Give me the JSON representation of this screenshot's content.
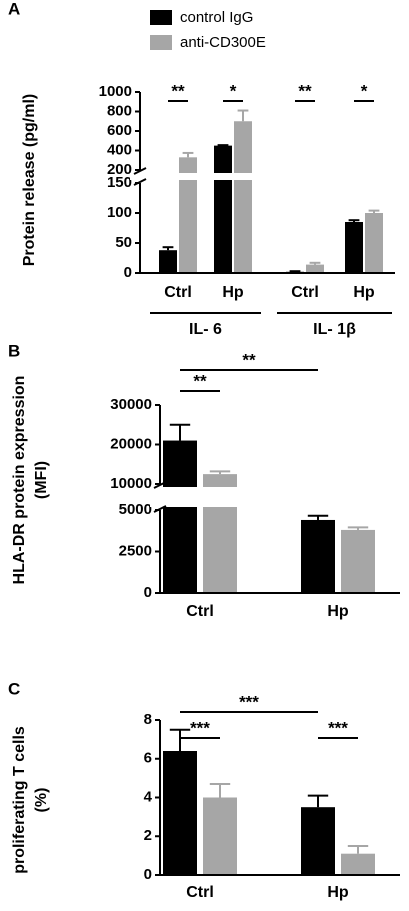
{
  "chart_data": [
    {
      "type": "bar",
      "panel": "A",
      "y_label": [
        "Protein release (pg/ml)"
      ],
      "categories": [
        "Ctrl",
        "Hp",
        "Ctrl",
        "Hp"
      ],
      "groups": [
        "IL- 6",
        "IL- 1β"
      ],
      "series": [
        {
          "name": "control IgG",
          "color": "#000000",
          "values": [
            38,
            450,
            2,
            85
          ],
          "errors": [
            5,
            5,
            1,
            3
          ]
        },
        {
          "name": "anti-CD300E",
          "color": "#a6a6a6",
          "values": [
            330,
            700,
            14,
            100
          ],
          "errors": [
            45,
            110,
            3,
            4
          ]
        }
      ],
      "ylim_segments": [
        [
          0,
          150
        ],
        [
          200,
          1000
        ]
      ],
      "yticks": [
        0,
        50,
        100,
        150,
        200,
        400,
        600,
        800,
        1000
      ],
      "significance": [
        {
          "label": "**",
          "from": [
            0,
            0
          ],
          "to": [
            0,
            1
          ]
        },
        {
          "label": "*",
          "from": [
            1,
            0
          ],
          "to": [
            1,
            1
          ]
        },
        {
          "label": "**",
          "from": [
            2,
            0
          ],
          "to": [
            2,
            1
          ]
        },
        {
          "label": "*",
          "from": [
            3,
            0
          ],
          "to": [
            3,
            1
          ]
        }
      ]
    },
    {
      "type": "bar",
      "panel": "B",
      "y_label": [
        "HLA-DR protein expression",
        "(MFI)"
      ],
      "categories": [
        "Ctrl",
        "Hp"
      ],
      "series": [
        {
          "color": "#000000",
          "values": [
            21000,
            4400
          ],
          "errors": [
            4000,
            250
          ]
        },
        {
          "color": "#a6a6a6",
          "values": [
            12500,
            3800
          ],
          "errors": [
            700,
            150
          ]
        }
      ],
      "ylim_segments": [
        [
          0,
          5000
        ],
        [
          10000,
          30000
        ]
      ],
      "yticks": [
        0,
        2500,
        5000,
        10000,
        20000,
        30000
      ],
      "significance": [
        {
          "label": "**",
          "from": [
            0,
            0
          ],
          "to": [
            0,
            1
          ]
        },
        {
          "label": "**",
          "from": [
            0,
            0
          ],
          "to": [
            1,
            0
          ]
        }
      ]
    },
    {
      "type": "bar",
      "panel": "C",
      "y_label": [
        "proliferating T cells",
        "(%)"
      ],
      "categories": [
        "Ctrl",
        "Hp"
      ],
      "series": [
        {
          "color": "#000000",
          "values": [
            6.4,
            3.5
          ],
          "errors": [
            1.1,
            0.6
          ]
        },
        {
          "color": "#a6a6a6",
          "values": [
            4.0,
            1.1
          ],
          "errors": [
            0.7,
            0.4
          ]
        }
      ],
      "ylim_segments": [
        [
          0,
          8
        ]
      ],
      "yticks": [
        0,
        2,
        4,
        6,
        8
      ],
      "significance": [
        {
          "label": "***",
          "from": [
            0,
            0
          ],
          "to": [
            0,
            1
          ]
        },
        {
          "label": "***",
          "from": [
            0,
            0
          ],
          "to": [
            1,
            0
          ]
        },
        {
          "label": "***",
          "from": [
            1,
            0
          ],
          "to": [
            1,
            1
          ]
        }
      ]
    }
  ]
}
